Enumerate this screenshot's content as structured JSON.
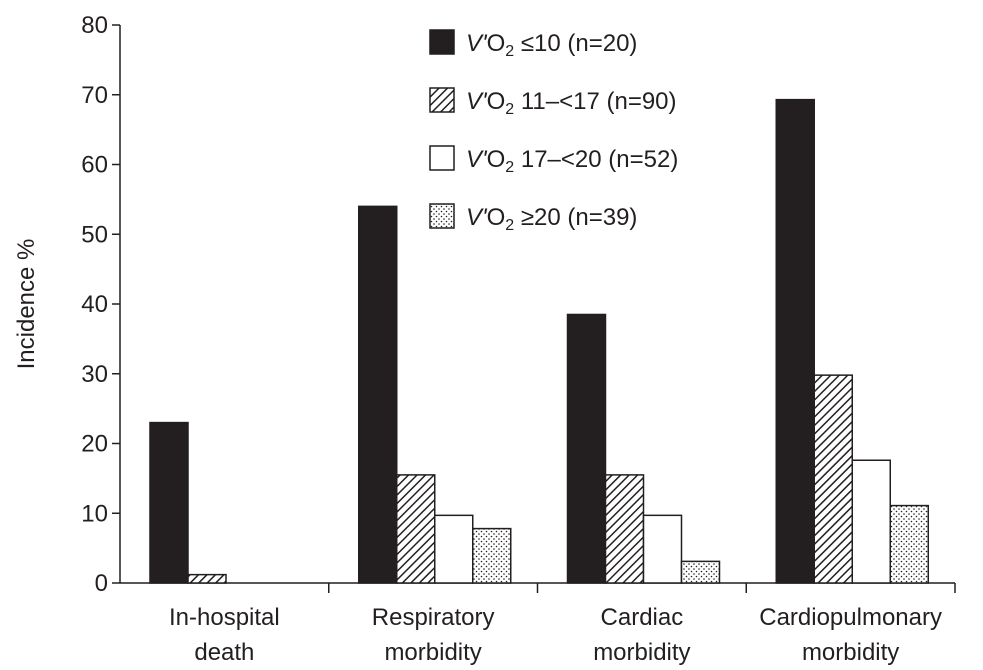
{
  "chart_data": {
    "type": "bar",
    "ylabel": "Incidence %",
    "ylim": [
      0,
      80
    ],
    "yticks": [
      "0",
      "10",
      "20",
      "30",
      "40",
      "50",
      "60",
      "70",
      "80"
    ],
    "categories": [
      {
        "line1": "In-hospital",
        "line2": "death"
      },
      {
        "line1": "Respiratory",
        "line2": "morbidity"
      },
      {
        "line1": "Cardiac",
        "line2": "morbidity"
      },
      {
        "line1": "Cardiopulmonary",
        "line2": "morbidity"
      }
    ],
    "series": [
      {
        "name": "V'O2 ≤10 (n=20)",
        "legend_v": "V'",
        "legend_o": "O",
        "legend_sub": "2",
        "legend_rest": " ≤10 (n=20)",
        "pattern": "solid",
        "values": [
          23,
          54,
          38.5,
          69.3
        ]
      },
      {
        "name": "V'O2 11–<17 (n=90)",
        "legend_v": "V'",
        "legend_o": "O",
        "legend_sub": "2",
        "legend_rest": " 11–<17 (n=90)",
        "pattern": "hatch",
        "values": [
          1.2,
          15.5,
          15.5,
          29.8
        ]
      },
      {
        "name": "V'O2 17–<20 (n=52)",
        "legend_v": "V'",
        "legend_o": "O",
        "legend_sub": "2",
        "legend_rest": " 17–<20 (n=52)",
        "pattern": "white",
        "values": [
          0,
          9.7,
          9.7,
          17.6
        ]
      },
      {
        "name": "V'O2 ≥20 (n=39)",
        "legend_v": "V'",
        "legend_o": "O",
        "legend_sub": "2",
        "legend_rest": " ≥20 (n=39)",
        "pattern": "dots",
        "values": [
          0,
          7.8,
          3.1,
          11.1
        ]
      }
    ],
    "legend_position": "top-center",
    "grid": false,
    "colors": {
      "ink": "#231f20",
      "white": "#ffffff"
    }
  }
}
